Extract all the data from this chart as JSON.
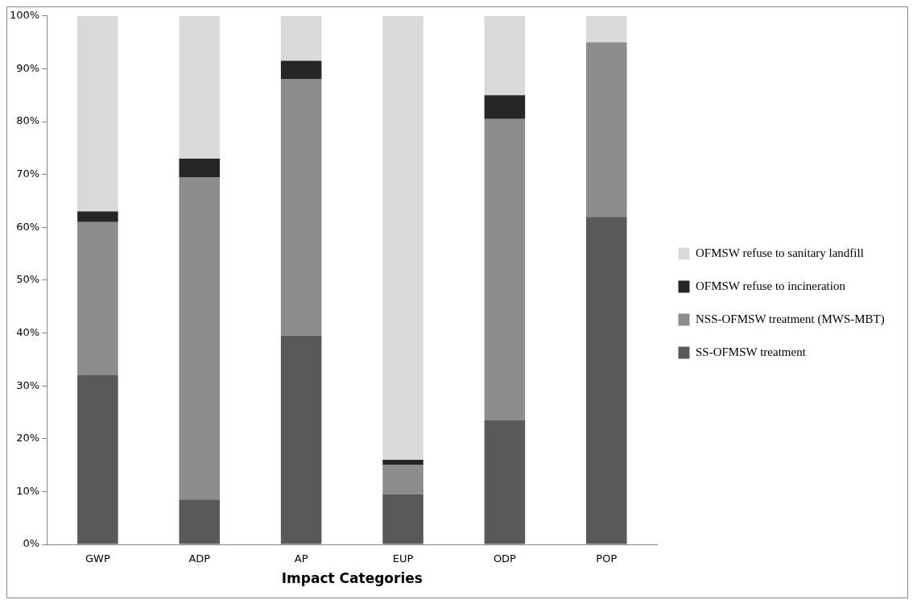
{
  "chart_data": {
    "type": "bar",
    "stacked": true,
    "xlabel": "Impact Categories",
    "categories": [
      "GWP",
      "ADP",
      "AP",
      "EUP",
      "ODP",
      "POP"
    ],
    "series": [
      {
        "name": "SS-OFMSW treatment",
        "color": "#595959",
        "values": [
          32,
          8.5,
          39.5,
          9.5,
          23.5,
          62
        ]
      },
      {
        "name": "NSS-OFMSW treatment (MWS-MBT)",
        "color": "#8c8c8c",
        "values": [
          29,
          61,
          48.5,
          5.5,
          57,
          33
        ]
      },
      {
        "name": "OFMSW refuse to incineration",
        "color": "#262626",
        "values": [
          2,
          3.5,
          3.5,
          1,
          4.5,
          0
        ]
      },
      {
        "name": "OFMSW refuse to sanitary landfill",
        "color": "#d9d9d9",
        "values": [
          37,
          27,
          8.5,
          84,
          15,
          5
        ]
      }
    ],
    "ylim": [
      0,
      100
    ],
    "yticks": [
      {
        "value": 0,
        "label": "0%"
      },
      {
        "value": 10,
        "label": "10%"
      },
      {
        "value": 20,
        "label": "20%"
      },
      {
        "value": 30,
        "label": "30%"
      },
      {
        "value": 40,
        "label": "40%"
      },
      {
        "value": 50,
        "label": "50%"
      },
      {
        "value": 60,
        "label": "60%"
      },
      {
        "value": 70,
        "label": "70%"
      },
      {
        "value": 80,
        "label": "80%"
      },
      {
        "value": 90,
        "label": "90%"
      },
      {
        "value": 100,
        "label": "100%"
      }
    ],
    "grid": false,
    "legend": "right"
  }
}
